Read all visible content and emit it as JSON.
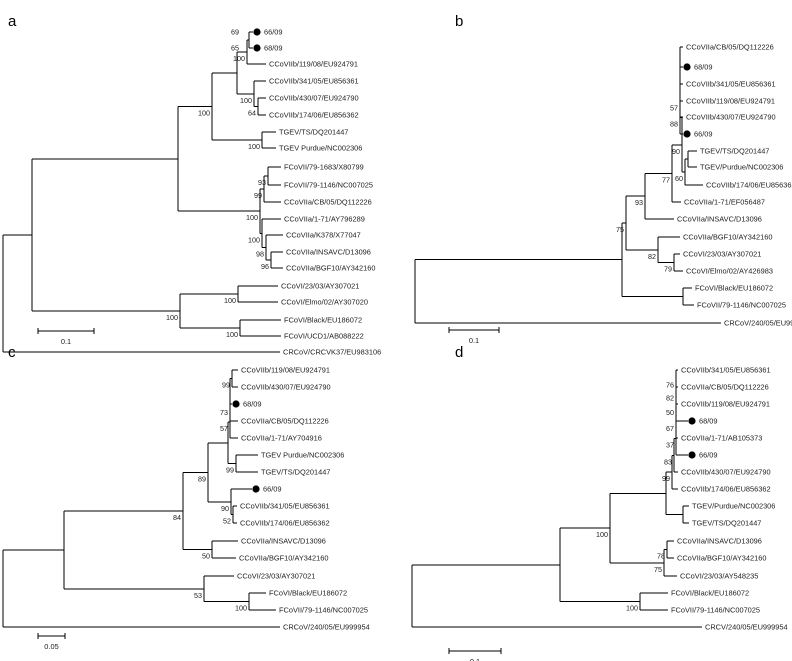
{
  "panels": [
    {
      "id": "a",
      "label": "a",
      "scale_label": "0.1",
      "tips": [
        "66/09",
        "68/09",
        "CCoVIIb/119/08/EU924791",
        "CCoVIIb/341/05/EU856361",
        "CCoVIIb/430/07/EU924790",
        "CCoVIIb/174/06/EU856362",
        "TGEV/TS/DQ201447",
        "TGEV Purdue/NC002306",
        "FCoVII/79-1683/X80799",
        "FCoVII/79-1146/NC007025",
        "CCoVIIa/CB/05/DQ112226",
        "CCoVIIa/1-71/AY796289",
        "CCoVIIa/K378/X77047",
        "CCoVIIa/INSAVC/D13096",
        "CCoVIIa/BGF10/AY342160",
        "CCoVI/23/03/AY307021",
        "CCoVI/Elmo/02/AY307020",
        "FCoVI/Black/EU186072",
        "FCoVI/UCD1/AB088222",
        "CRCoV/CRCVK37/EU983106"
      ],
      "bootstraps": [
        "69",
        "65",
        "100",
        "100",
        "64",
        "100",
        "100",
        "93",
        "99",
        "100",
        "100",
        "98",
        "96",
        "100",
        "100",
        "100"
      ]
    },
    {
      "id": "b",
      "label": "b",
      "scale_label": "0.1",
      "tips": [
        "CCoVIIa/CB/05/DQ112226",
        "68/09",
        "CCoVIIb/341/05/EU856361",
        "CCoVIIb/119/08/EU924791",
        "CCoVIIb/430/07/EU924790",
        "66/09",
        "TGEV/TS/DQ201447",
        "TGEV/Purdue/NC002306",
        "CCoVIIb/174/06/EU856362",
        "CCoVIIa/1-71/EF056487",
        "CCoVIIa/INSAVC/D13096",
        "CCoVIIa/BGF10/AY342160",
        "CCoVI/23/03/AY307021",
        "CCoVI/Elmo/02/AY426983",
        "FCoVI/Black/EU186072",
        "FCoVII/79-1146/NC007025",
        "CRCoV/240/05/EU999954"
      ],
      "bootstraps": [
        "57",
        "88",
        "90",
        "60",
        "77",
        "93",
        "75",
        "82",
        "79"
      ]
    },
    {
      "id": "c",
      "label": "c",
      "scale_label": "0.05",
      "tips": [
        "CCoVIIb/119/08/EU924791",
        "CCoVIIb/430/07/EU924790",
        "68/09",
        "CCoVIIa/CB/05/DQ112226",
        "CCoVIIa/1-71/AY704916",
        "TGEV Purdue/NC002306",
        "TGEV/TS/DQ201447",
        "66/09",
        "CCoVIIb/341/05/EU856361",
        "CCoVIIb/174/06/EU856362",
        "CCoVIIa/INSAVC/D13096",
        "CCoVIIa/BGF10/AY342160",
        "CCoVI/23/03/AY307021",
        "FCoVI/Black/EU186072",
        "FCoVII/79-1146/NC007025",
        "CRCoV/240/05/EU999954"
      ],
      "bootstraps": [
        "99",
        "73",
        "57",
        "99",
        "89",
        "90",
        "52",
        "84",
        "50",
        "53",
        "100"
      ]
    },
    {
      "id": "d",
      "label": "d",
      "scale_label": "0.1",
      "tips": [
        "CCoVIIb/341/05/EU856361",
        "CCoVIIa/CB/05/DQ112226",
        "CCoVIIb/119/08/EU924791",
        "68/09",
        "CCoVIIa/1-71/AB105373",
        "66/09",
        "CCoVIIb/430/07/EU924790",
        "CCoVIIb/174/06/EU856362",
        "TGEV/Purdue/NC002306",
        "TGEV/TS/DQ201447",
        "CCoVIIa/INSAVC/D13096",
        "CCoVIIa/BGF10/AY342160",
        "CCoVI/23/03/AY548235",
        "FCoVI/Black/EU186072",
        "FCoVII/79-1146/NC007025",
        "CRCV/240/05/EU999954"
      ],
      "bootstraps": [
        "76",
        "82",
        "50",
        "67",
        "37",
        "83",
        "99",
        "100",
        "75",
        "78",
        "100"
      ]
    }
  ]
}
